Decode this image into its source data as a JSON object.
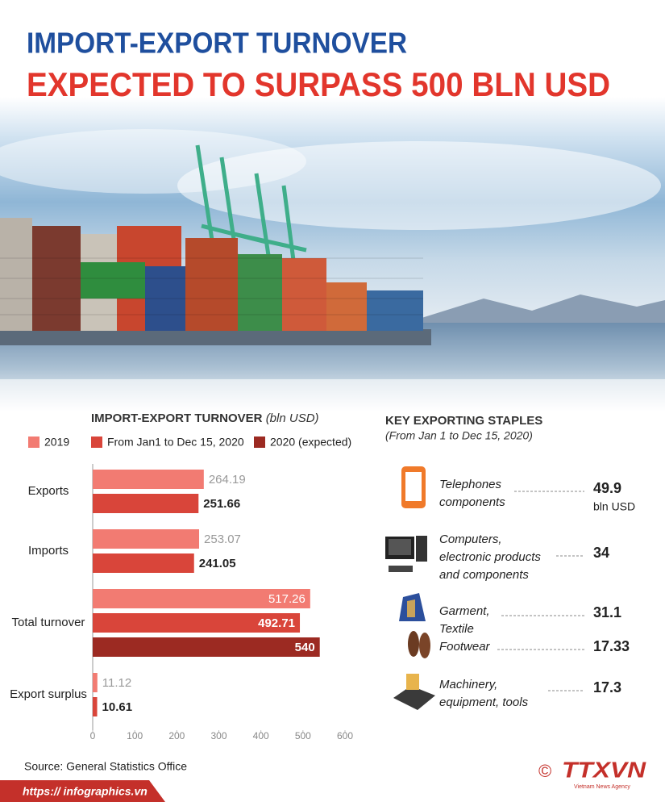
{
  "header": {
    "title": "IMPORT-EXPORT TURNOVER",
    "subtitle": "EXPECTED TO SURPASS 500 BLN USD"
  },
  "chart_data": {
    "type": "bar",
    "orientation": "horizontal",
    "title": "IMPORT-EXPORT TURNOVER",
    "unit": "(bln USD)",
    "categories": [
      "Exports",
      "Imports",
      "Total turnover",
      "Export surplus"
    ],
    "series": [
      {
        "name": "2019",
        "color": "#f27b72",
        "values": [
          264.19,
          253.07,
          517.26,
          11.12
        ]
      },
      {
        "name": "From Jan1 to Dec 15, 2020",
        "color": "#d9453a",
        "values": [
          251.66,
          241.05,
          492.71,
          10.61
        ]
      },
      {
        "name": "2020 (expected)",
        "color": "#9c2a22",
        "values": [
          null,
          null,
          540,
          null
        ]
      }
    ],
    "xlim": [
      0,
      600
    ],
    "xticks": [
      0,
      100,
      200,
      300,
      400,
      500,
      600
    ]
  },
  "staples": {
    "title": "KEY EXPORTING STAPLES",
    "subtitle": "(From Jan 1 to Dec 15, 2020)",
    "items": [
      {
        "label": [
          "Telephones",
          "components"
        ],
        "value": 49.9,
        "unit": "bln USD"
      },
      {
        "label": [
          "Computers,",
          "electronic products",
          "and components"
        ],
        "value": 34
      },
      {
        "label": [
          "Garment,",
          "Textile"
        ],
        "value": 31.1
      },
      {
        "label": [
          "Footwear"
        ],
        "value": 17.33
      },
      {
        "label": [
          "Machinery,",
          "equipment, tools"
        ],
        "value": 17.3
      }
    ]
  },
  "source": "Source: General Statistics Office",
  "footer": {
    "url": "https:// infographics.vn",
    "logo": "TTXVN",
    "logo_sub": "Vietnam News Agency",
    "copyright": "©"
  }
}
